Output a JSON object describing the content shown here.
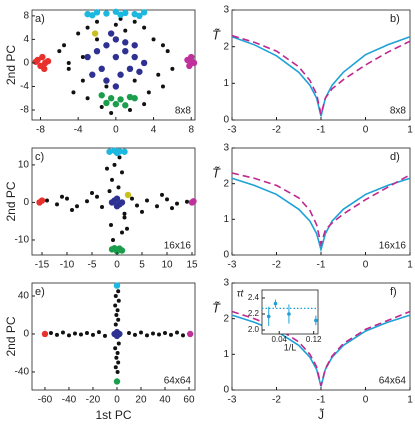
{
  "chart_data": [
    {
      "type": "scatter",
      "panel_label": "a)",
      "size_label": "8x8",
      "y_label": "2nd PC",
      "xlim": [
        -8.9,
        8.4
      ],
      "ylim": [
        -9.7,
        9
      ],
      "xticks": [
        -8,
        -4,
        0,
        4,
        8
      ],
      "yticks": [
        -8,
        -4,
        0,
        4,
        8
      ],
      "series": [
        {
          "color": "#111111",
          "x": [
            -6,
            -5,
            -5.5,
            -4,
            -3.5,
            -3,
            -2,
            -1,
            0,
            1,
            2,
            3,
            4,
            4.5,
            5,
            5.5,
            6,
            -4.5,
            -3,
            -1.5,
            1.5,
            3.5,
            5,
            -5,
            2,
            -2,
            0.5,
            -0.5,
            3,
            -3.5
          ],
          "values": [
            2,
            -1,
            3,
            5,
            -3,
            6,
            7,
            -4,
            6.5,
            5.5,
            7,
            6,
            4,
            -2,
            -4,
            2,
            -1,
            -5,
            -6,
            -7.5,
            -8,
            -5,
            3,
            0,
            -3,
            4,
            7.5,
            -8.5,
            -7,
            1
          ]
        },
        {
          "color": "#1cb8e0",
          "x": [
            -3,
            -2,
            -1,
            0,
            1,
            2,
            3,
            -2.5,
            0.5,
            2.5
          ],
          "values": [
            8.3,
            8.6,
            8.4,
            8.7,
            8.5,
            8.3,
            8.6,
            8.1,
            8.2,
            8.0
          ]
        },
        {
          "color": "#e8302c",
          "x": [
            -8.3,
            -7.8,
            -7.5,
            -8,
            -7.2,
            -8.5,
            -7.6
          ],
          "values": [
            0.5,
            1,
            0,
            -0.5,
            0.3,
            0.2,
            -1
          ]
        },
        {
          "color": "#c0309a",
          "x": [
            7.6,
            8,
            8.3,
            7.8,
            8.1
          ],
          "values": [
            0.5,
            1,
            0,
            -0.5,
            0.2
          ]
        },
        {
          "color": "#1a9e4c",
          "x": [
            -1.5,
            -0.5,
            0.5,
            1.5,
            0,
            -1,
            1,
            2
          ],
          "values": [
            -5.5,
            -6,
            -6.2,
            -5.8,
            -7,
            -6.8,
            -7.2,
            -6
          ]
        },
        {
          "color": "#2e3192",
          "x": [
            -3,
            -2,
            -1,
            0,
            1,
            2,
            3,
            -1.5,
            0.5,
            1.5,
            -2.5,
            2.5,
            0,
            -0.5,
            1,
            -1,
            2,
            0
          ],
          "values": [
            1,
            2,
            3,
            1,
            2,
            1,
            0,
            -1,
            -2,
            -1,
            -2,
            -1.5,
            4,
            5,
            3.5,
            -3,
            3,
            -4
          ]
        },
        {
          "color": "#c8c020",
          "x": [
            -2.2
          ],
          "values": [
            5
          ]
        }
      ]
    },
    {
      "type": "line",
      "panel_label": "b)",
      "size_label": "8x8",
      "y_label": "T̃",
      "xlim": [
        -3,
        1
      ],
      "ylim": [
        0,
        3
      ],
      "xticks": [
        -3,
        -2,
        -1,
        0,
        1
      ],
      "yticks": [
        0,
        1,
        2,
        3
      ],
      "x": [
        -3,
        -2.5,
        -2,
        -1.5,
        -1.25,
        -1.1,
        -1,
        -0.9,
        -0.75,
        -0.5,
        0,
        0.5,
        1
      ],
      "series": [
        {
          "color": "#1ea2d6",
          "dash": false,
          "values": [
            2.27,
            2.05,
            1.75,
            1.3,
            0.95,
            0.6,
            0.1,
            0.6,
            0.95,
            1.3,
            1.78,
            2.05,
            2.27
          ]
        },
        {
          "color": "#c0288f",
          "dash": true,
          "values": [
            2.3,
            2.12,
            1.88,
            1.45,
            1.08,
            0.7,
            0.15,
            0.6,
            0.85,
            1.1,
            1.5,
            1.85,
            2.15
          ]
        }
      ]
    },
    {
      "type": "scatter",
      "panel_label": "c)",
      "size_label": "16x16",
      "y_label": "2nd PC",
      "xlim": [
        -17,
        15.6
      ],
      "ylim": [
        -14,
        14.5
      ],
      "xticks": [
        -15,
        -10,
        -5,
        0,
        5,
        10,
        15
      ],
      "yticks": [
        -10,
        0,
        10
      ],
      "series": [
        {
          "color": "#111111",
          "x": [
            -14,
            -12,
            -10,
            -8,
            -6,
            -4,
            -3,
            3,
            4,
            6,
            8,
            10,
            12,
            14,
            -9,
            9,
            -5,
            5,
            -11,
            11,
            0.5,
            -0.5,
            1,
            -1,
            0.3,
            1.5,
            -1.2,
            1,
            -0.8,
            0.5,
            -2,
            2,
            -1.5,
            1.5
          ],
          "values": [
            0.5,
            -0.5,
            1,
            -1,
            0.3,
            1.5,
            -1.2,
            1,
            -0.8,
            0.5,
            -1,
            0.8,
            -0.3,
            0.2,
            -2,
            2,
            2.5,
            -2.5,
            1.5,
            -1.5,
            12,
            10,
            8,
            6,
            4,
            -4,
            -6,
            -8,
            -10,
            -12,
            9,
            -7,
            3,
            -3
          ]
        },
        {
          "color": "#1cb8e0",
          "x": [
            -1.5,
            -0.5,
            0.5,
            1.5,
            0
          ],
          "values": [
            13.5,
            13.8,
            13.6,
            13.5,
            13.2
          ]
        },
        {
          "color": "#e8302c",
          "x": [
            -15.5,
            -15
          ],
          "values": [
            0,
            0.5
          ]
        },
        {
          "color": "#c0309a",
          "x": [
            15,
            15.3
          ],
          "values": [
            0,
            0.3
          ]
        },
        {
          "color": "#1a9e4c",
          "x": [
            -1,
            0,
            1,
            0.5,
            -0.5
          ],
          "values": [
            -12.5,
            -13,
            -12.8,
            -12.3,
            -12.2
          ]
        },
        {
          "color": "#2e3192",
          "x": [
            -1,
            0,
            1,
            0,
            -0.5,
            0.5
          ],
          "values": [
            0,
            1,
            0,
            -1,
            0.5,
            -0.5
          ]
        },
        {
          "color": "#c8c020",
          "x": [
            2.2
          ],
          "values": [
            2
          ]
        }
      ]
    },
    {
      "type": "line",
      "panel_label": "d)",
      "size_label": "16x16",
      "y_label": "T̃",
      "xlim": [
        -3,
        1
      ],
      "ylim": [
        0,
        3
      ],
      "xticks": [
        -3,
        -2,
        -1,
        0,
        1
      ],
      "yticks": [
        0,
        1,
        2,
        3
      ],
      "x": [
        -3,
        -2.5,
        -2,
        -1.5,
        -1.25,
        -1.1,
        -1,
        -0.9,
        -0.75,
        -0.5,
        0,
        0.5,
        1
      ],
      "series": [
        {
          "color": "#1ea2d6",
          "dash": false,
          "values": [
            2.15,
            1.95,
            1.7,
            1.28,
            0.95,
            0.6,
            0.15,
            0.6,
            0.95,
            1.28,
            1.7,
            1.95,
            2.15
          ]
        },
        {
          "color": "#c0288f",
          "dash": true,
          "values": [
            2.3,
            2.15,
            1.95,
            1.6,
            1.25,
            0.85,
            0.3,
            0.7,
            0.9,
            1.15,
            1.55,
            1.9,
            2.25
          ]
        }
      ]
    },
    {
      "type": "scatter",
      "panel_label": "e)",
      "size_label": "64x64",
      "y_label": "2nd PC",
      "x_label": "1st PC",
      "xlim": [
        -70.8,
        65
      ],
      "ylim": [
        -59,
        53.7
      ],
      "xticks": [
        -60,
        -40,
        -20,
        0,
        20,
        40,
        60
      ],
      "yticks": [
        -40,
        0,
        40
      ],
      "series": [
        {
          "color": "#111111",
          "x": [
            -55,
            -50,
            -45,
            -40,
            -35,
            -30,
            -25,
            -20,
            -15,
            -10,
            10,
            15,
            20,
            25,
            30,
            35,
            40,
            45,
            50,
            55,
            1,
            -1,
            1.5,
            -1.5,
            0.5,
            -0.5,
            1,
            -1,
            1.5,
            -1.5,
            0.5,
            -0.5,
            1,
            -1,
            0.5
          ],
          "values": [
            1,
            -1,
            1.5,
            -1.5,
            0.5,
            -0.5,
            1,
            -1,
            2,
            -2,
            1,
            -1,
            1.5,
            -1.5,
            0.5,
            -0.5,
            1,
            -1,
            1.5,
            -1.5,
            45,
            40,
            35,
            30,
            25,
            20,
            15,
            10,
            -10,
            -15,
            -20,
            -25,
            -30,
            -35,
            -40
          ]
        },
        {
          "color": "#1cb8e0",
          "x": [
            0
          ],
          "values": [
            51
          ]
        },
        {
          "color": "#e8302c",
          "x": [
            -60
          ],
          "values": [
            0
          ]
        },
        {
          "color": "#c0309a",
          "x": [
            61
          ],
          "values": [
            0
          ]
        },
        {
          "color": "#1a9e4c",
          "x": [
            0
          ],
          "values": [
            -50
          ]
        },
        {
          "color": "#2e3192",
          "x": [
            -2,
            0,
            2,
            0
          ],
          "values": [
            0,
            2,
            0,
            -2
          ]
        }
      ]
    },
    {
      "type": "line",
      "panel_label": "f)",
      "size_label": "64x64",
      "y_label": "T̃",
      "x_label": "J̃",
      "xlim": [
        -3,
        1
      ],
      "ylim": [
        0,
        3
      ],
      "xticks": [
        -3,
        -2,
        -1,
        0,
        1
      ],
      "yticks": [
        0,
        1,
        2,
        3
      ],
      "x": [
        -3,
        -2.5,
        -2,
        -1.5,
        -1.25,
        -1.1,
        -1,
        -0.9,
        -0.75,
        -0.5,
        0,
        0.5,
        1
      ],
      "series": [
        {
          "color": "#1ea2d6",
          "dash": false,
          "values": [
            2.1,
            1.9,
            1.65,
            1.25,
            0.92,
            0.58,
            0.1,
            0.58,
            0.92,
            1.25,
            1.65,
            1.9,
            2.1
          ]
        },
        {
          "color": "#c0288f",
          "dash": true,
          "values": [
            2.2,
            2.0,
            1.75,
            1.35,
            1.0,
            0.65,
            0.12,
            0.6,
            0.95,
            1.3,
            1.7,
            1.95,
            2.2
          ]
        }
      ]
    },
    {
      "type": "errorbar",
      "y_label": "τt",
      "x_label": "1/L",
      "xlim": [
        0,
        0.13
      ],
      "ylim": [
        1.95,
        2.5
      ],
      "xticks": [
        0.04,
        0.12
      ],
      "yticks": [
        {
          "value": 2,
          "label": "2.0"
        },
        2.2,
        2.4
      ],
      "reference_line": 2.27,
      "color": "#1ea2d6",
      "x": [
        0.0156,
        0.03125,
        0.0625,
        0.125
      ],
      "values": [
        2.17,
        2.33,
        2.2,
        2.12
      ],
      "errors": [
        0.12,
        0.05,
        0.12,
        0.06
      ]
    }
  ]
}
